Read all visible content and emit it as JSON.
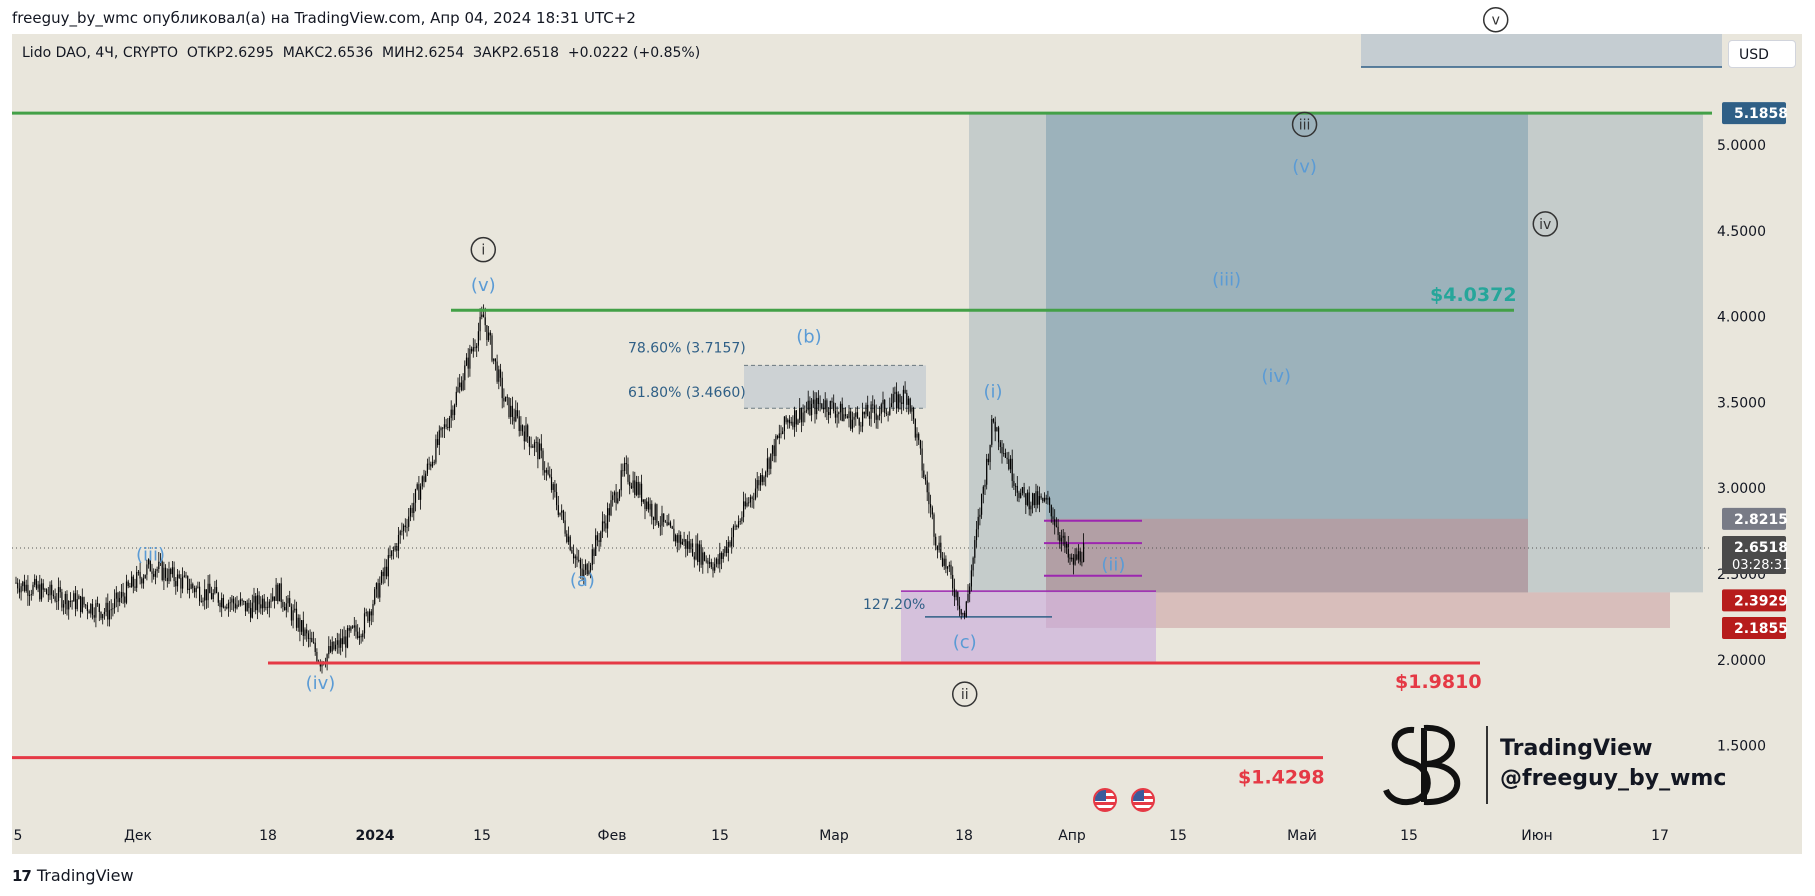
{
  "header": {
    "published_line": "freeguy_by_wmc опубликовал(а) на TradingView.com, Апр 04, 2024 18:31 UTC+2"
  },
  "legend": {
    "symbol": "Lido DAO",
    "interval": "4Ч",
    "exchange": "CRYPTO",
    "open_label": "ОТКР",
    "open": "2.6295",
    "high_label": "МАКС",
    "high": "2.6536",
    "low_label": "МИН",
    "low": "2.6254",
    "close_label": "ЗАКР",
    "close": "2.6518",
    "change": "+0.0222 (+0.85%)"
  },
  "currency_button": "USD",
  "footer": {
    "brand": "TradingView"
  },
  "watermark": {
    "line1": "TradingView",
    "line2": "@freeguy_by_wmc"
  },
  "colors": {
    "background": "#e9e6dc",
    "green_line": "#43a047",
    "red_line": "#e53945",
    "wave_blue": "#5b9bd5",
    "target_text": "#26a69a",
    "target_box": "#7a9caf",
    "stop_box": "#c48f93",
    "purple": "#9c27b0",
    "fib_box": "#c5cdd2"
  },
  "chart_data": {
    "type": "candlestick",
    "symbol": "Lido DAO",
    "interval": "4Ч",
    "ylim": [
      1.2,
      5.7
    ],
    "y_ticks": [
      "5.0000",
      "4.5000",
      "4.0000",
      "3.5000",
      "3.0000",
      "2.5000",
      "2.0000",
      "1.5000"
    ],
    "x_ticks": [
      "5",
      "Дек",
      "18",
      "2024",
      "15",
      "Фев",
      "15",
      "Мар",
      "18",
      "Апр",
      "15",
      "Май",
      "15",
      "Июн",
      "17"
    ],
    "price_badges": [
      {
        "value": "5.1858",
        "color": "#2f5f86"
      },
      {
        "value": "2.8215",
        "color": "#787b86"
      },
      {
        "value": "2.6518",
        "sub": "03:28:31",
        "color": "#4a4a4a"
      },
      {
        "value": "2.3929",
        "color": "#b71c1c"
      },
      {
        "value": "2.1855",
        "color": "#b71c1c"
      }
    ],
    "horizontal_levels": [
      {
        "label": "",
        "value": 5.1858,
        "color": "green"
      },
      {
        "label": "$4.0372",
        "value": 4.0372,
        "color": "teal"
      },
      {
        "label": "$1.9810",
        "value": 1.981,
        "color": "red"
      },
      {
        "label": "$1.4298",
        "value": 1.4298,
        "color": "red"
      }
    ],
    "fibonacci": [
      {
        "label": "78.60% (3.7157)",
        "value": 3.7157
      },
      {
        "label": "61.80% (3.4660)",
        "value": 3.466
      },
      {
        "label": "127.20%",
        "value": 2.25
      }
    ],
    "wave_labels": {
      "blue": [
        {
          "text": "(iii)",
          "x": "Nov 24",
          "y": 2.58
        },
        {
          "text": "(iv)",
          "x": "Dec 18",
          "y": 1.83
        },
        {
          "text": "(v)",
          "x": "Jan 10",
          "y": 4.15
        },
        {
          "text": "(a)",
          "x": "Jan 24",
          "y": 2.43
        },
        {
          "text": "(b)",
          "x": "Feb 25",
          "y": 3.85
        },
        {
          "text": "(c)",
          "x": "Mar 18",
          "y": 2.07
        },
        {
          "text": "(i)",
          "x": "Mar 22",
          "y": 3.53
        },
        {
          "text": "(ii)",
          "x": "Apr 08",
          "y": 2.52
        },
        {
          "text": "(iii)",
          "x": "Apr 24",
          "y": 4.18
        },
        {
          "text": "(iv)",
          "x": "May 01",
          "y": 3.62
        },
        {
          "text": "(v)",
          "x": "May 05",
          "y": 4.84
        }
      ],
      "circled": [
        {
          "text": "i",
          "x": "Jan 10",
          "y": 4.39
        },
        {
          "text": "ii",
          "x": "Mar 18",
          "y": 1.8
        },
        {
          "text": "iii",
          "x": "May 05",
          "y": 5.12
        },
        {
          "text": "iv",
          "x": "Jun 08",
          "y": 4.54
        },
        {
          "text": "v",
          "x": "Jun 01",
          "y": 5.73
        }
      ]
    },
    "candles_summary": [
      [
        "Nov 05",
        2.45
      ],
      [
        "Nov 10",
        2.38
      ],
      [
        "Nov 18",
        2.28
      ],
      [
        "Nov 24",
        2.55
      ],
      [
        "Dec 01",
        2.4
      ],
      [
        "Dec 08",
        2.3
      ],
      [
        "Dec 12",
        2.4
      ],
      [
        "Dec 18",
        2.0
      ],
      [
        "Dec 24",
        2.2
      ],
      [
        "Dec 28",
        2.6
      ],
      [
        "Jan 01",
        3.0
      ],
      [
        "Jan 05",
        3.4
      ],
      [
        "Jan 10",
        4.0
      ],
      [
        "Jan 13",
        3.5
      ],
      [
        "Jan 18",
        3.2
      ],
      [
        "Jan 24",
        2.48
      ],
      [
        "Jan 30",
        3.1
      ],
      [
        "Feb 05",
        2.75
      ],
      [
        "Feb 12",
        2.55
      ],
      [
        "Feb 18",
        3.05
      ],
      [
        "Feb 22",
        3.4
      ],
      [
        "Feb 27",
        3.5
      ],
      [
        "Mar 02",
        3.4
      ],
      [
        "Mar 06",
        3.45
      ],
      [
        "Mar 10",
        3.55
      ],
      [
        "Mar 14",
        2.7
      ],
      [
        "Mar 18",
        2.25
      ],
      [
        "Mar 22",
        3.4
      ],
      [
        "Mar 26",
        2.95
      ],
      [
        "Mar 30",
        2.9
      ],
      [
        "Apr 02",
        2.55
      ],
      [
        "Apr 04",
        2.65
      ]
    ]
  }
}
